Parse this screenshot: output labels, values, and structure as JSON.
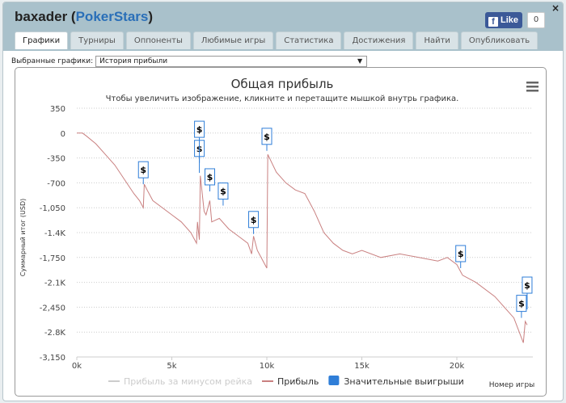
{
  "header": {
    "user": "baxader",
    "site": "PokerStars",
    "like_label": "Like",
    "like_count": "0",
    "close": "×"
  },
  "tabs": [
    {
      "label": "Графики",
      "active": true
    },
    {
      "label": "Турниры"
    },
    {
      "label": "Оппоненты"
    },
    {
      "label": "Любимые игры"
    },
    {
      "label": "Статистика"
    },
    {
      "label": "Достижения"
    },
    {
      "label": "Найти"
    },
    {
      "label": "Опубликовать"
    }
  ],
  "selector": {
    "label": "Выбранные графики:",
    "value": "История прибыли"
  },
  "chart_data": {
    "type": "line",
    "title": "Общая прибыль",
    "subtitle": "Чтобы увеличить изображение, кликните и перетащите мышкой внутрь графика.",
    "ylabel": "Суммарный итог (USD)",
    "xlabel": "Номер игры",
    "ylim": [
      -3150,
      350
    ],
    "xlim": [
      0,
      24
    ],
    "yticks": [
      "350",
      "0",
      "-350",
      "-700",
      "-1,050",
      "-1.4K",
      "-1,750",
      "-2.1K",
      "-2,450",
      "-2.8K",
      "-3,150"
    ],
    "ytick_values": [
      350,
      0,
      -350,
      -700,
      -1050,
      -1400,
      -1750,
      -2100,
      -2450,
      -2800,
      -3150
    ],
    "xticks": [
      "0k",
      "5k",
      "10k",
      "15k",
      "20k"
    ],
    "xtick_values": [
      0,
      5,
      10,
      15,
      20
    ],
    "grid": true,
    "legend": [
      {
        "name": "Прибыль за минусом рейка",
        "color": "#cccccc",
        "hidden": true
      },
      {
        "name": "Прибыль",
        "color": "#c98080"
      },
      {
        "name": "Значительные выигрыши",
        "color": "#2f7ed8"
      }
    ],
    "series": [
      {
        "name": "Прибыль",
        "color": "#c98080",
        "points": [
          [
            0,
            0
          ],
          [
            0.3,
            0
          ],
          [
            0.5,
            -40
          ],
          [
            1,
            -150
          ],
          [
            1.5,
            -300
          ],
          [
            2,
            -450
          ],
          [
            2.5,
            -650
          ],
          [
            3,
            -850
          ],
          [
            3.3,
            -950
          ],
          [
            3.5,
            -1050
          ],
          [
            3.55,
            -720
          ],
          [
            3.7,
            -800
          ],
          [
            4,
            -950
          ],
          [
            5,
            -1150
          ],
          [
            5.5,
            -1250
          ],
          [
            6,
            -1400
          ],
          [
            6.3,
            -1550
          ],
          [
            6.35,
            -1250
          ],
          [
            6.45,
            -1500
          ],
          [
            6.5,
            -600
          ],
          [
            6.7,
            -1100
          ],
          [
            6.8,
            -1150
          ],
          [
            7,
            -950
          ],
          [
            7.1,
            -1250
          ],
          [
            7.5,
            -1200
          ],
          [
            8,
            -1350
          ],
          [
            8.5,
            -1450
          ],
          [
            9,
            -1550
          ],
          [
            9.2,
            -1700
          ],
          [
            9.3,
            -1450
          ],
          [
            9.5,
            -1650
          ],
          [
            10,
            -1900
          ],
          [
            10.05,
            -300
          ],
          [
            10.5,
            -550
          ],
          [
            11,
            -700
          ],
          [
            11.5,
            -800
          ],
          [
            12,
            -850
          ],
          [
            12.5,
            -1100
          ],
          [
            13,
            -1400
          ],
          [
            13.5,
            -1550
          ],
          [
            14,
            -1650
          ],
          [
            14.5,
            -1700
          ],
          [
            15,
            -1650
          ],
          [
            16,
            -1750
          ],
          [
            17,
            -1700
          ],
          [
            18,
            -1750
          ],
          [
            19,
            -1800
          ],
          [
            19.5,
            -1750
          ],
          [
            20,
            -1850
          ],
          [
            20.2,
            -1950
          ],
          [
            20.3,
            -2000
          ],
          [
            21,
            -2100
          ],
          [
            22,
            -2300
          ],
          [
            23,
            -2600
          ],
          [
            23.5,
            -2950
          ],
          [
            23.6,
            -2650
          ],
          [
            23.7,
            -2700
          ]
        ]
      }
    ],
    "markers": {
      "label": "$",
      "points": [
        [
          3.5,
          -720
        ],
        [
          6.45,
          -420
        ],
        [
          6.45,
          -560
        ],
        [
          7.0,
          -820
        ],
        [
          7.7,
          -1020
        ],
        [
          9.3,
          -1420
        ],
        [
          10.0,
          -250
        ],
        [
          20.2,
          -1900
        ],
        [
          23.4,
          -2600
        ],
        [
          23.7,
          -2480
        ]
      ]
    }
  }
}
